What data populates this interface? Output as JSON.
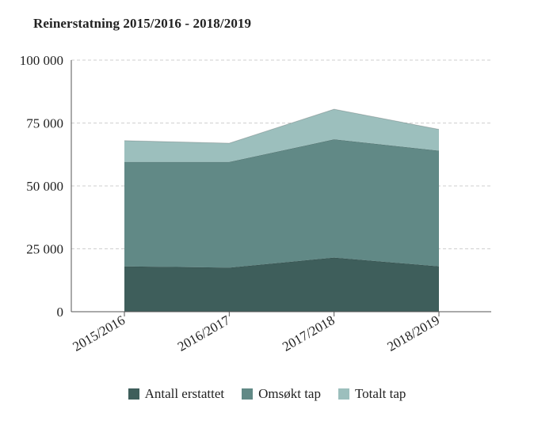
{
  "title": "Reinerstatning 2015/2016 - 2018/2019",
  "chart_data": {
    "type": "area",
    "stacked": true,
    "categories": [
      "2015/2016",
      "2016/2017",
      "2017/2018",
      "2018/2019"
    ],
    "series": [
      {
        "name": "Antall erstattet",
        "color": "#3e5e5b",
        "values": [
          18000,
          17500,
          21500,
          18000
        ]
      },
      {
        "name": "Omsøkt tap",
        "color": "#618986",
        "values": [
          41500,
          42000,
          47000,
          46000
        ]
      },
      {
        "name": "Totalt tap",
        "color": "#9cbfbd",
        "values": [
          8500,
          7500,
          12000,
          8500
        ]
      }
    ],
    "ylim": [
      0,
      100000
    ],
    "yticks": [
      0,
      25000,
      50000,
      75000,
      100000
    ],
    "ytick_labels": [
      "0",
      "25 000",
      "50 000",
      "75 000",
      "100 000"
    ],
    "xlabel": "",
    "ylabel": "",
    "grid": true,
    "legend_position": "bottom"
  }
}
